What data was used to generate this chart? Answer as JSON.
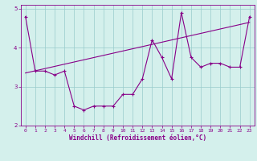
{
  "xlabel": "Windchill (Refroidissement éolien,°C)",
  "ylabel": "",
  "bg_color": "#d4f0ec",
  "line_color": "#880088",
  "xlim": [
    -0.5,
    23.5
  ],
  "ylim": [
    2,
    5.1
  ],
  "yticks": [
    2,
    3,
    4,
    5
  ],
  "xticks": [
    0,
    1,
    2,
    3,
    4,
    5,
    6,
    7,
    8,
    9,
    10,
    11,
    12,
    13,
    14,
    15,
    16,
    17,
    18,
    19,
    20,
    21,
    22,
    23
  ],
  "data_x": [
    0,
    1,
    2,
    3,
    4,
    5,
    6,
    7,
    8,
    9,
    10,
    11,
    12,
    13,
    14,
    15,
    16,
    17,
    18,
    19,
    20,
    21,
    22,
    23
  ],
  "data_y": [
    4.8,
    3.4,
    3.4,
    3.3,
    3.4,
    2.5,
    2.4,
    2.5,
    2.5,
    2.5,
    2.8,
    2.8,
    3.2,
    4.2,
    3.75,
    3.2,
    4.9,
    3.75,
    3.5,
    3.6,
    3.6,
    3.5,
    3.5,
    4.8
  ],
  "trend_x": [
    0,
    23
  ],
  "trend_y": [
    3.35,
    4.65
  ],
  "xlabel_fontsize": 5.5,
  "tick_fontsize": 4.5
}
